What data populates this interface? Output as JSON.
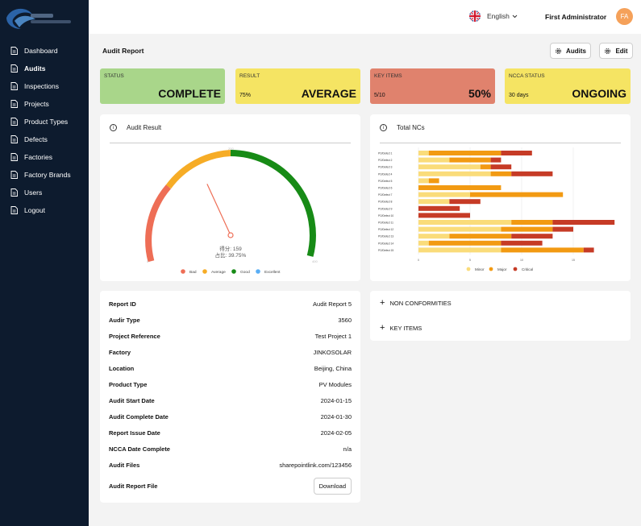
{
  "nav": [
    {
      "label": "Dashboard"
    },
    {
      "label": "Audits"
    },
    {
      "label": "Inspections"
    },
    {
      "label": "Projects"
    },
    {
      "label": "Product Types"
    },
    {
      "label": "Defects"
    },
    {
      "label": "Factories"
    },
    {
      "label": "Factory Brands"
    },
    {
      "label": "Users"
    },
    {
      "label": "Logout"
    }
  ],
  "header": {
    "language": "English",
    "user_name": "First Administrator",
    "avatar_initials": "FA"
  },
  "page": {
    "title": "Audit Report",
    "audits_button": "Audits",
    "edit_button": "Edit"
  },
  "cards": [
    {
      "label": "STATUS",
      "sub": "",
      "value": "COMPLETE",
      "color": "#a9d68a"
    },
    {
      "label": "RESULT",
      "sub": "75%",
      "value": "AVERAGE",
      "color": "#f5e463"
    },
    {
      "label": "KEY ITEMS",
      "sub": "5/10",
      "value": "50%",
      "color": "#e0826d"
    },
    {
      "label": "NCCA STATUS",
      "sub": "30 days",
      "value": "ONGOING",
      "color": "#f5e463"
    }
  ],
  "audit_result": {
    "title": "Audit Result",
    "score_text": "得分: 159",
    "ratio_text": "占比: 39.75%",
    "needle_fraction": 0.3975,
    "legend": [
      {
        "label": "Bad",
        "color": "#ee6e56"
      },
      {
        "label": "Average",
        "color": "#f6ac26"
      },
      {
        "label": "Good",
        "color": "#178b16"
      },
      {
        "label": "Excellent",
        "color": "#5aaef5"
      }
    ]
  },
  "total_ncs": {
    "title": "Total NCs",
    "legend": [
      {
        "label": "Minor",
        "color": "#fadc7a"
      },
      {
        "label": "Major",
        "color": "#f29a12"
      },
      {
        "label": "Critical",
        "color": "#c63b26"
      }
    ]
  },
  "chart_data": {
    "type": "bar",
    "orientation": "horizontal",
    "stacked": true,
    "title": "Total NCs",
    "categories": [
      "PO/Defect 1",
      "PO/Defect 2",
      "PO/Defect 3",
      "PO/Defect 4",
      "PO/Defect 5",
      "PO/Defect 6",
      "PO/Defect 7",
      "PO/Defect 8",
      "PO/Defect 9",
      "PO/Defect 10",
      "PO/Defect 11",
      "PO/Defect 12",
      "PO/Defect 13",
      "PO/Defect 14",
      "PO/Defect 15"
    ],
    "xlim": [
      0,
      20
    ],
    "xticks": [
      "0",
      "5",
      "10",
      "15"
    ],
    "series": [
      {
        "name": "Minor",
        "color": "#fadc7a",
        "values": [
          1,
          3,
          6,
          7,
          1,
          0,
          5,
          3,
          0,
          0,
          9,
          8,
          3,
          1,
          8
        ]
      },
      {
        "name": "Major",
        "color": "#f29a12",
        "values": [
          7,
          4,
          1,
          2,
          1,
          8,
          9,
          0,
          0,
          0,
          4,
          5,
          6,
          7,
          8
        ]
      },
      {
        "name": "Critical",
        "color": "#c63b26",
        "values": [
          3,
          1,
          2,
          4,
          0,
          0,
          0,
          3,
          4,
          5,
          6,
          2,
          4,
          4,
          1
        ]
      }
    ]
  },
  "details": {
    "rows": [
      {
        "label": "Report ID",
        "value": "Audit Report 5"
      },
      {
        "label": "Audir Type",
        "value": "3560"
      },
      {
        "label": "Project Reference",
        "value": "Test Project 1"
      },
      {
        "label": "Factory",
        "value": "JINKOSOLAR"
      },
      {
        "label": "Location",
        "value": "Beijing, China"
      },
      {
        "label": "Product Type",
        "value": "PV Modules"
      },
      {
        "label": "Audit Start Date",
        "value": "2024-01-15"
      },
      {
        "label": "Audit Complete Date",
        "value": "2024-01-30"
      },
      {
        "label": "Report Issue Date",
        "value": "2024-02-05"
      },
      {
        "label": "NCCA Date Complete",
        "value": "n/a"
      },
      {
        "label": "Audit Files",
        "value": "sharepointlink.com/123456"
      }
    ],
    "file_label": "Audit Report File",
    "download_label": "Download"
  },
  "sections": {
    "non_conformities": "NON CONFORMITIES",
    "key_items": "KEY ITEMS"
  }
}
